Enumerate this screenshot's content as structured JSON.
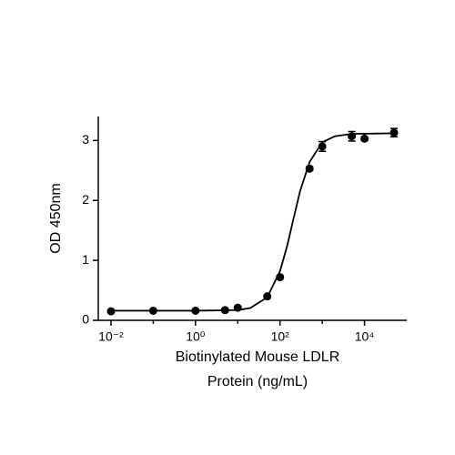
{
  "chart_data": {
    "type": "scatter",
    "xlabel": [
      "Biotinylated Mouse LDLR",
      "Protein (ng/mL)"
    ],
    "ylabel": "OD 450nm",
    "log_x": true,
    "color": "#000000",
    "x": [
      0.01,
      0.1,
      1,
      5,
      10,
      50,
      100,
      500,
      1000,
      5000,
      10000,
      50000
    ],
    "values": [
      0.15,
      0.16,
      0.16,
      0.17,
      0.21,
      0.4,
      0.72,
      2.53,
      2.9,
      3.07,
      3.03,
      3.13
    ],
    "errors": [
      0.01,
      0.01,
      0.01,
      0.01,
      0.02,
      0.02,
      0.02,
      0.03,
      0.08,
      0.08,
      0.03,
      0.07
    ],
    "fit": {
      "x": [
        0.01,
        1,
        10,
        20,
        50,
        100,
        150,
        200,
        300,
        500,
        1000,
        2000,
        5000,
        50000
      ],
      "values": [
        0.16,
        0.16,
        0.17,
        0.206,
        0.386,
        0.82,
        1.26,
        1.64,
        2.16,
        2.64,
        2.97,
        3.07,
        3.11,
        3.12
      ]
    },
    "xlim": [
      0.005,
      100000
    ],
    "xticks": [
      {
        "value": 0.01,
        "label": "10⁻²"
      },
      {
        "value": 1,
        "label": "10⁰"
      },
      {
        "value": 100,
        "label": "10²"
      },
      {
        "value": 10000,
        "label": "10⁴"
      }
    ],
    "xminorticks": [
      0.1,
      10,
      1000
    ],
    "ylim": [
      0,
      3.4
    ],
    "yticks": [
      0,
      1,
      2,
      3
    ],
    "grid": false
  }
}
